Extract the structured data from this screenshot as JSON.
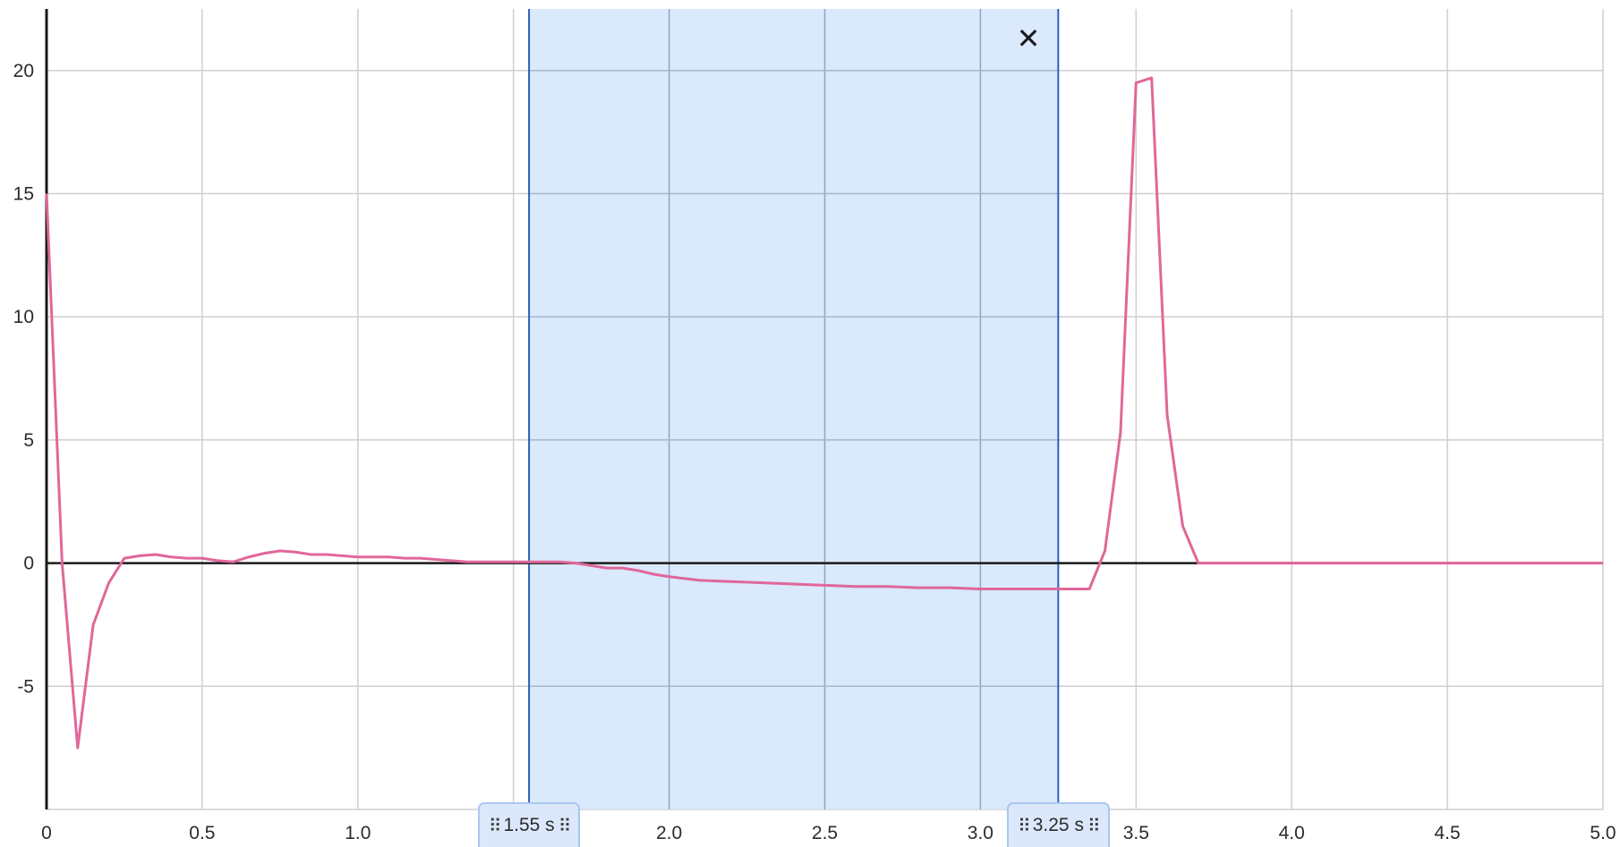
{
  "chart_data": {
    "type": "line",
    "title": "",
    "xlabel": "",
    "ylabel": "",
    "xlim": [
      0,
      5
    ],
    "ylim": [
      -10,
      22.5
    ],
    "x_ticks": [
      0,
      0.5,
      1.0,
      1.5,
      2.0,
      2.5,
      3.0,
      3.5,
      4.0,
      4.5,
      5.0
    ],
    "x_tick_labels": [
      "0",
      "0.5",
      "1.0",
      "1.5",
      "2.0",
      "2.5",
      "3.0",
      "3.5",
      "4.0",
      "4.5",
      "5.0"
    ],
    "y_ticks": [
      -5,
      0,
      5,
      10,
      15,
      20
    ],
    "y_tick_labels": [
      "-5",
      "0",
      "5",
      "10",
      "15",
      "20"
    ],
    "grid": true,
    "colors": {
      "line": "#e0679a",
      "selection_fill": "#d3e5fc",
      "selection_edge": "#2f5fbf",
      "grid": "#cfcfcf",
      "axis": "#1a1a1a"
    },
    "series": [
      {
        "x": [
          0,
          0.05,
          0.1,
          0.15,
          0.2,
          0.25,
          0.3,
          0.35,
          0.4,
          0.45,
          0.5,
          0.55,
          0.6,
          0.65,
          0.7,
          0.75,
          0.8,
          0.85,
          0.9,
          0.95,
          1.0,
          1.05,
          1.1,
          1.15,
          1.2,
          1.25,
          1.3,
          1.35,
          1.4,
          1.45,
          1.5,
          1.55,
          1.6,
          1.65,
          1.7,
          1.75,
          1.8,
          1.85,
          1.9,
          1.95,
          2.0,
          2.1,
          2.2,
          2.3,
          2.4,
          2.5,
          2.6,
          2.7,
          2.8,
          2.9,
          3.0,
          3.1,
          3.2,
          3.25,
          3.3,
          3.35,
          3.4,
          3.45,
          3.5,
          3.55,
          3.6,
          3.65,
          3.7,
          3.8,
          4.0,
          4.5,
          5.0
        ],
        "y": [
          15,
          0,
          -7.5,
          -2.5,
          -0.8,
          0.2,
          0.3,
          0.35,
          0.25,
          0.2,
          0.2,
          0.1,
          0.05,
          0.25,
          0.4,
          0.5,
          0.45,
          0.35,
          0.35,
          0.3,
          0.25,
          0.25,
          0.25,
          0.2,
          0.2,
          0.15,
          0.1,
          0.05,
          0.05,
          0.05,
          0.05,
          0.05,
          0.05,
          0.05,
          0.0,
          -0.1,
          -0.2,
          -0.2,
          -0.3,
          -0.45,
          -0.55,
          -0.7,
          -0.75,
          -0.8,
          -0.85,
          -0.9,
          -0.95,
          -0.95,
          -1.0,
          -1.0,
          -1.05,
          -1.05,
          -1.05,
          -1.05,
          -1.05,
          -1.05,
          0.5,
          5.3,
          19.5,
          19.7,
          6.0,
          1.5,
          0.0,
          0.0,
          0.0,
          0.0,
          0.0
        ]
      }
    ],
    "selection": {
      "start": 1.55,
      "end": 3.25,
      "start_label": "1.55 s",
      "end_label": "3.25 s"
    }
  },
  "controls": {
    "close_symbol": "✕",
    "grip_symbol": "⠿"
  }
}
